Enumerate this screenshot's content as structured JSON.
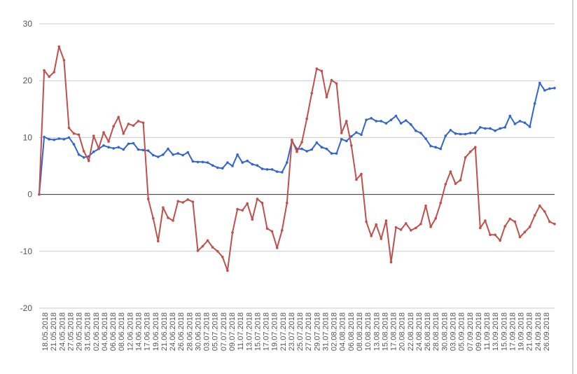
{
  "chart_data": {
    "type": "line",
    "title": "",
    "xlabel": "",
    "ylabel": "",
    "ylim": [
      -20,
      30
    ],
    "yticks": [
      -20,
      -10,
      0,
      10,
      20,
      30
    ],
    "grid": true,
    "legend": "none",
    "xtick_labels": [
      "18.05.2018",
      "21.05.2018",
      "24.05.2018",
      "27.05.2018",
      "29.05.2018",
      "31.05.2018",
      "02.06.2018",
      "04.06.2018",
      "06.06.2018",
      "08.06.2018",
      "12.06.2018",
      "14.06.2018",
      "17.06.2018",
      "19.06.2018",
      "21.06.2018",
      "24.06.2018",
      "26.06.2018",
      "28.06.2018",
      "30.06.2018",
      "03.07.2018",
      "05.07.2018",
      "07.07.2018",
      "09.07.2018",
      "11.07.2018",
      "13.07.2018",
      "15.07.2018",
      "17.07.2018",
      "19.07.2018",
      "21.07.2018",
      "23.07.2018",
      "25.07.2018",
      "27.07.2018",
      "29.07.2018",
      "31.07.2018",
      "02.08.2018",
      "04.08.2018",
      "06.08.2018",
      "08.08.2018",
      "10.08.2018",
      "13.08.2018",
      "15.08.2018",
      "17.08.2018",
      "20.08.2018",
      "22.08.2018",
      "24.08.2018",
      "26.08.2018",
      "28.08.2018",
      "30.08.2018",
      "03.09.2018",
      "05.09.2018",
      "07.09.2018",
      "09.09.2018",
      "11.09.2018",
      "13.09.2018",
      "15.09.2018",
      "17.09.2018",
      "19.09.2018",
      "21.09.2018",
      "24.09.2018",
      "26.09.2018"
    ],
    "series": [
      {
        "color": "#3366cc",
        "values": [
          0,
          10.1,
          9.7,
          9.6,
          9.8,
          9.7,
          10.0,
          8.8,
          7.0,
          6.5,
          6.7,
          7.5,
          8.0,
          8.6,
          8.3,
          8.1,
          8.3,
          7.9,
          8.9,
          9.0,
          7.9,
          7.8,
          7.7,
          6.9,
          6.6,
          7.0,
          8.0,
          7.0,
          7.2,
          6.9,
          7.4,
          5.8,
          5.7,
          5.7,
          5.6,
          5.1,
          4.7,
          4.6,
          5.6,
          5.0,
          7.0,
          5.6,
          5.9,
          5.3,
          5.1,
          4.5,
          4.4,
          4.4,
          4.0,
          3.9,
          5.6,
          9.4,
          8.0,
          8.0,
          7.6,
          7.9,
          9.1,
          8.3,
          8.0,
          7.2,
          7.2,
          9.7,
          9.4,
          10.2,
          10.9,
          10.5,
          13.1,
          13.4,
          12.9,
          12.9,
          12.5,
          13.1,
          13.8,
          12.5,
          13.0,
          12.3,
          11.2,
          10.8,
          9.8,
          8.5,
          8.3,
          8.0,
          10.3,
          11.3,
          10.7,
          10.6,
          10.6,
          10.8,
          10.8,
          11.8,
          11.6,
          11.6,
          11.2,
          11.6,
          11.8,
          13.8,
          12.4,
          12.9,
          12.6,
          11.9,
          16.0,
          19.6,
          18.3,
          18.6,
          18.7
        ]
      },
      {
        "color": "#c0504d",
        "values": [
          0,
          21.8,
          20.7,
          21.5,
          26.0,
          23.6,
          11.7,
          10.7,
          10.5,
          7.6,
          5.9,
          10.3,
          8.1,
          10.9,
          9.3,
          12.0,
          13.6,
          10.7,
          12.4,
          12.1,
          12.9,
          12.6,
          -0.8,
          -4.2,
          -8.2,
          -2.3,
          -4.1,
          -4.6,
          -1.2,
          -1.4,
          -0.9,
          -1.3,
          -9.9,
          -9.1,
          -8.1,
          -9.3,
          -10.0,
          -11.0,
          -13.4,
          -6.7,
          -2.6,
          -2.8,
          -1.6,
          -4.4,
          -0.8,
          -1.5,
          -6.0,
          -6.5,
          -9.4,
          -6.3,
          -1.5,
          9.6,
          7.5,
          9.2,
          13.3,
          17.8,
          22.1,
          21.7,
          17.1,
          20.1,
          19.5,
          10.8,
          12.9,
          8.6,
          2.6,
          3.6,
          -4.8,
          -7.3,
          -5.3,
          -7.8,
          -4.6,
          -11.9,
          -5.8,
          -6.2,
          -5.1,
          -6.3,
          -5.9,
          -5.2,
          -2.0,
          -5.7,
          -4.2,
          -1.5,
          1.8,
          4.0,
          1.9,
          2.5,
          6.5,
          7.5,
          8.3,
          -5.9,
          -4.6,
          -7.1,
          -7.1,
          -8.1,
          -5.6,
          -4.3,
          -4.8,
          -7.5,
          -6.6,
          -5.7,
          -3.7,
          -2.0,
          -3.0,
          -4.8,
          -5.2
        ]
      }
    ]
  }
}
